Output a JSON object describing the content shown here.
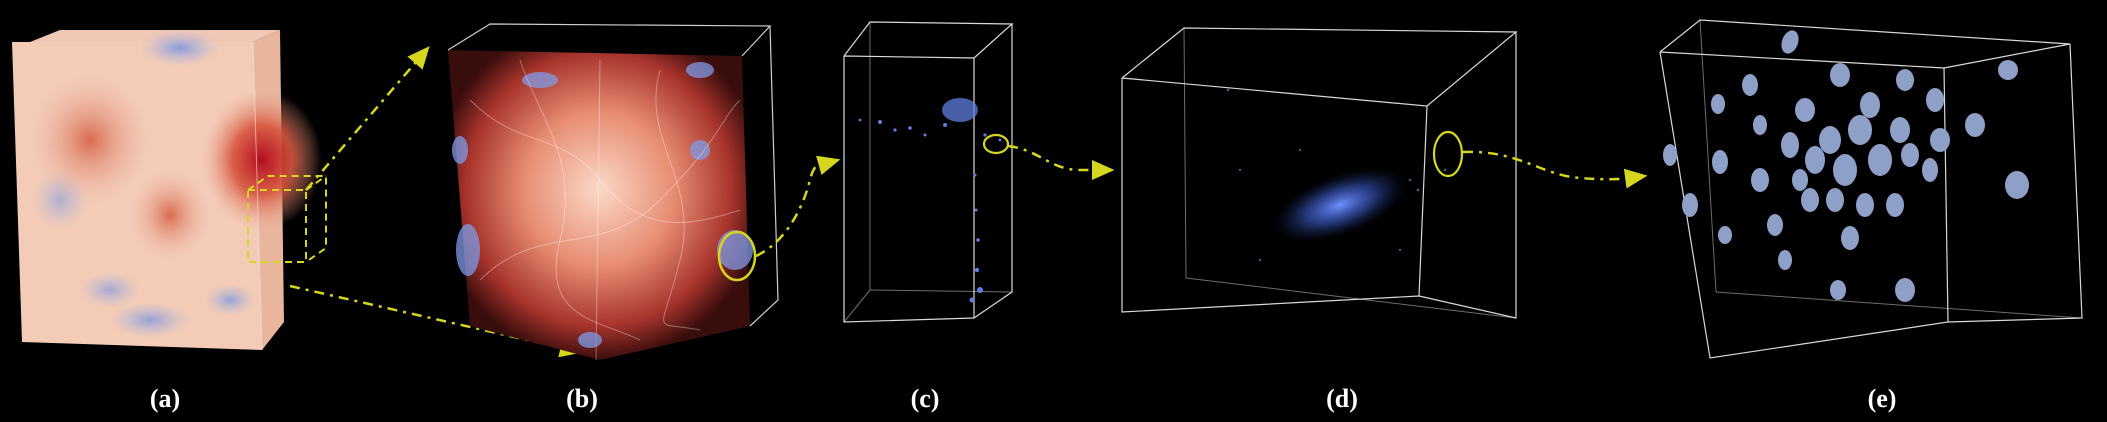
{
  "panels": [
    {
      "id": "a",
      "label": "(a)"
    },
    {
      "id": "b",
      "label": "(b)"
    },
    {
      "id": "c",
      "label": "(c)"
    },
    {
      "id": "d",
      "label": "(d)"
    },
    {
      "id": "e",
      "label": "(e)"
    }
  ],
  "colors": {
    "background": "#000000",
    "frame": "#d9d9d9",
    "connector": "#d6d61f",
    "warm": "#c92a2a",
    "cool": "#6f8fe6",
    "particle": "#8ea0c8"
  }
}
